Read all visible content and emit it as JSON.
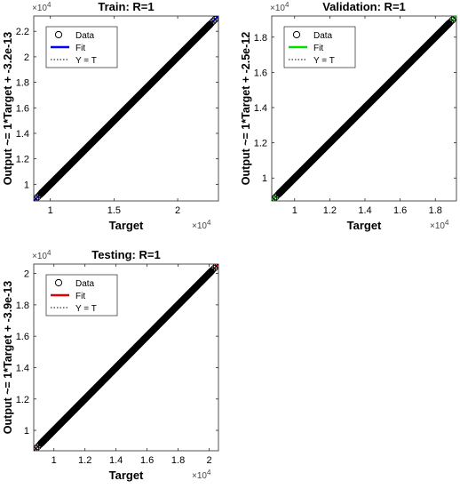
{
  "chart_data": [
    {
      "type": "scatter",
      "title": "Train: R=1",
      "xlabel": "Target",
      "ylabel": "Output ~= 1*Target + -3.2e-13",
      "x_exponent": "×10",
      "x_exponent_power": "4",
      "y_exponent": "×10",
      "y_exponent_power": "4",
      "xlim": [
        0.87,
        2.32
      ],
      "ylim": [
        0.87,
        2.32
      ],
      "x_ticks": [
        1,
        1.5,
        2
      ],
      "x_tick_labels": [
        "1",
        "1.5",
        "2"
      ],
      "y_ticks": [
        1,
        1.2,
        1.4,
        1.6,
        1.8,
        2,
        2.2
      ],
      "y_tick_labels": [
        "1",
        "1.2",
        "1.4",
        "1.6",
        "1.8",
        "2",
        "2.2"
      ],
      "data_range": [
        0.87,
        2.31
      ],
      "fit_color": "#0000ff",
      "legend": [
        "Data",
        "Fit",
        "Y = T"
      ],
      "legend_position": "top-left",
      "grid": false
    },
    {
      "type": "scatter",
      "title": "Validation: R=1",
      "xlabel": "Target",
      "ylabel": "Output ~= 1*Target + -2.5e-12",
      "x_exponent": "×10",
      "x_exponent_power": "4",
      "y_exponent": "×10",
      "y_exponent_power": "4",
      "xlim": [
        0.87,
        1.92
      ],
      "ylim": [
        0.87,
        1.92
      ],
      "x_ticks": [
        1,
        1.2,
        1.4,
        1.6,
        1.8
      ],
      "x_tick_labels": [
        "1",
        "1.2",
        "1.4",
        "1.6",
        "1.8"
      ],
      "y_ticks": [
        1,
        1.2,
        1.4,
        1.6,
        1.8
      ],
      "y_tick_labels": [
        "1",
        "1.2",
        "1.4",
        "1.6",
        "1.8"
      ],
      "data_range": [
        0.87,
        1.92
      ],
      "fit_color": "#00e000",
      "legend": [
        "Data",
        "Fit",
        "Y = T"
      ],
      "legend_position": "top-left",
      "grid": false
    },
    {
      "type": "scatter",
      "title": "Testing: R=1",
      "xlabel": "Target",
      "ylabel": "Output ~= 1*Target + -3.9e-13",
      "x_exponent": "×10",
      "x_exponent_power": "4",
      "y_exponent": "×10",
      "y_exponent_power": "4",
      "xlim": [
        0.87,
        2.06
      ],
      "ylim": [
        0.87,
        2.06
      ],
      "x_ticks": [
        1,
        1.2,
        1.4,
        1.6,
        1.8,
        2
      ],
      "x_tick_labels": [
        "1",
        "1.2",
        "1.4",
        "1.6",
        "1.8",
        "2"
      ],
      "y_ticks": [
        1,
        1.2,
        1.4,
        1.6,
        1.8,
        2
      ],
      "y_tick_labels": [
        "1",
        "1.2",
        "1.4",
        "1.6",
        "1.8",
        "2"
      ],
      "data_range": [
        0.87,
        2.06
      ],
      "fit_color": "#e00000",
      "legend": [
        "Data",
        "Fit",
        "Y = T"
      ],
      "legend_position": "top-left",
      "grid": false
    }
  ]
}
